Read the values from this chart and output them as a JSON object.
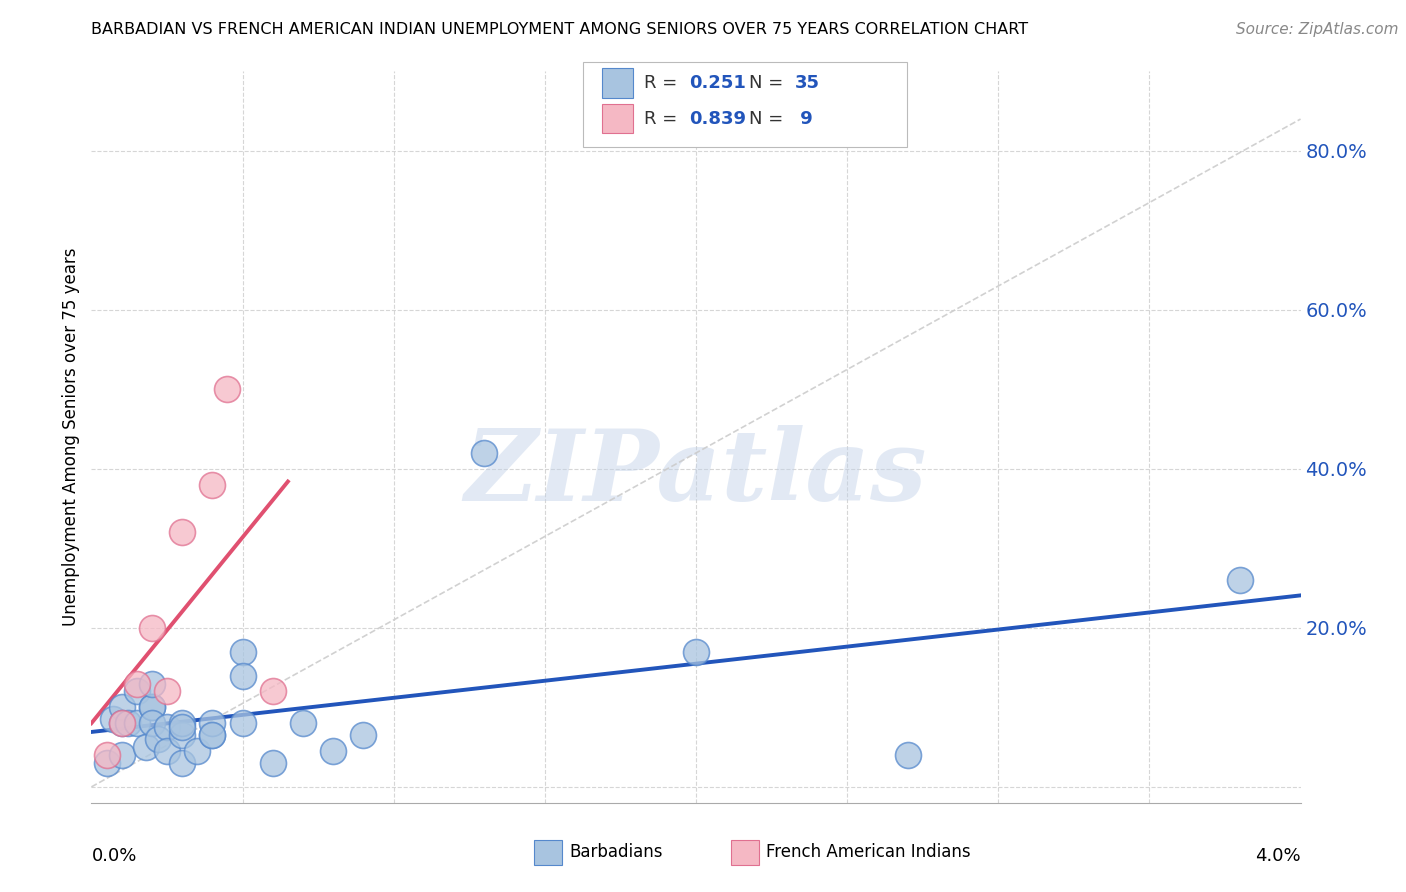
{
  "title": "BARBADIAN VS FRENCH AMERICAN INDIAN UNEMPLOYMENT AMONG SENIORS OVER 75 YEARS CORRELATION CHART",
  "source": "Source: ZipAtlas.com",
  "ylabel": "Unemployment Among Seniors over 75 years",
  "x_range": [
    0.0,
    0.04
  ],
  "y_range": [
    -0.02,
    0.9
  ],
  "y_ticks": [
    0.0,
    0.2,
    0.4,
    0.6,
    0.8
  ],
  "y_tick_labels": [
    "",
    "20.0%",
    "40.0%",
    "60.0%",
    "80.0%"
  ],
  "barbadian_color": "#A8C4E0",
  "barbadian_edge_color": "#5588CC",
  "barbadian_line_color": "#2255BB",
  "french_color": "#F5B8C4",
  "french_edge_color": "#E07090",
  "french_line_color": "#E05070",
  "diagonal_color": "#CCCCCC",
  "watermark_text": "ZIPatlas",
  "watermark_color": "#C0D0E8",
  "legend_label1": "Barbadians",
  "legend_label2": "French American Indians",
  "barbadian_x": [
    0.0005,
    0.0007,
    0.001,
    0.001,
    0.001,
    0.0012,
    0.0015,
    0.0015,
    0.0018,
    0.002,
    0.002,
    0.002,
    0.002,
    0.0022,
    0.0025,
    0.0025,
    0.003,
    0.003,
    0.003,
    0.003,
    0.0035,
    0.004,
    0.004,
    0.004,
    0.005,
    0.005,
    0.005,
    0.006,
    0.007,
    0.008,
    0.009,
    0.013,
    0.02,
    0.027,
    0.038
  ],
  "barbadian_y": [
    0.03,
    0.085,
    0.1,
    0.08,
    0.04,
    0.08,
    0.08,
    0.12,
    0.05,
    0.1,
    0.1,
    0.13,
    0.08,
    0.06,
    0.075,
    0.045,
    0.065,
    0.08,
    0.075,
    0.03,
    0.045,
    0.065,
    0.08,
    0.065,
    0.17,
    0.14,
    0.08,
    0.03,
    0.08,
    0.045,
    0.065,
    0.42,
    0.17,
    0.04,
    0.26
  ],
  "french_x": [
    0.0005,
    0.001,
    0.0015,
    0.002,
    0.0025,
    0.003,
    0.004,
    0.0045,
    0.006
  ],
  "french_y": [
    0.04,
    0.08,
    0.13,
    0.2,
    0.12,
    0.32,
    0.38,
    0.5,
    0.12
  ]
}
